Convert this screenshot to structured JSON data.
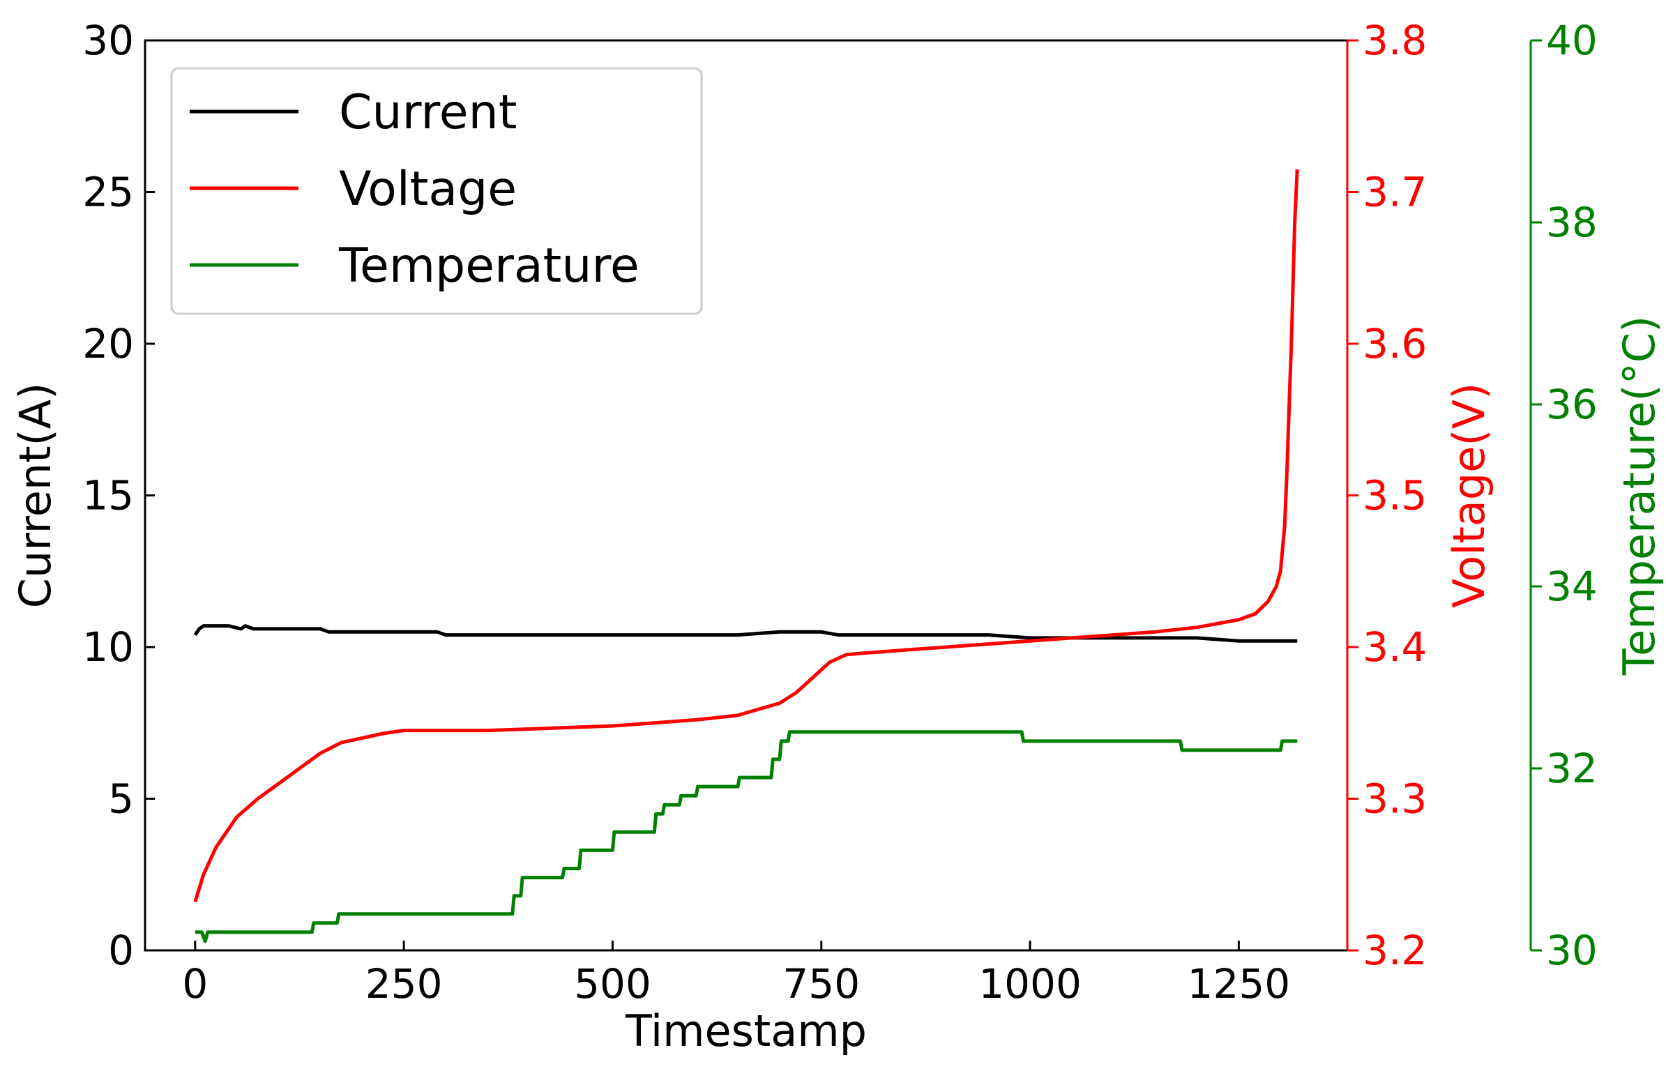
{
  "chart_data": {
    "type": "line",
    "xlabel": "Timestamp",
    "xlim": [
      -60,
      1380
    ],
    "xticks": [
      0,
      250,
      500,
      750,
      1000,
      1250
    ],
    "legend_position": "top-left",
    "grid": false,
    "axes": {
      "current": {
        "label": "Current(A)",
        "side": "left",
        "ylim": [
          0,
          30
        ],
        "ticks": [
          "0",
          "5",
          "10",
          "15",
          "20",
          "25",
          "30"
        ],
        "color": "#000000"
      },
      "voltage": {
        "label": "Voltage(V)",
        "side": "right",
        "ylim": [
          3.2,
          3.8
        ],
        "ticks": [
          "3.2",
          "3.3",
          "3.4",
          "3.5",
          "3.6",
          "3.7",
          "3.8"
        ],
        "color": "#ff0000"
      },
      "temperature": {
        "label": "Temperature(°C)",
        "side": "right-outer",
        "ylim": [
          30,
          40
        ],
        "ticks": [
          "30",
          "32",
          "34",
          "36",
          "38",
          "40"
        ],
        "color": "#008000"
      }
    },
    "series": [
      {
        "name": "Current",
        "axis": "current",
        "color": "#000000",
        "x": [
          0,
          5,
          10,
          40,
          55,
          60,
          70,
          100,
          150,
          160,
          200,
          250,
          290,
          300,
          350,
          400,
          450,
          500,
          550,
          600,
          650,
          700,
          750,
          770,
          800,
          850,
          900,
          950,
          1000,
          1050,
          1100,
          1150,
          1180,
          1200,
          1250,
          1300,
          1320
        ],
        "y": [
          10.4,
          10.6,
          10.7,
          10.7,
          10.6,
          10.7,
          10.6,
          10.6,
          10.6,
          10.5,
          10.5,
          10.5,
          10.5,
          10.4,
          10.4,
          10.4,
          10.4,
          10.4,
          10.4,
          10.4,
          10.4,
          10.5,
          10.5,
          10.4,
          10.4,
          10.4,
          10.4,
          10.4,
          10.3,
          10.3,
          10.3,
          10.3,
          10.3,
          10.3,
          10.2,
          10.2,
          10.2
        ]
      },
      {
        "name": "Voltage",
        "axis": "voltage",
        "color": "#ff0000",
        "x": [
          0,
          10,
          25,
          50,
          75,
          100,
          125,
          150,
          175,
          200,
          225,
          250,
          300,
          350,
          400,
          450,
          500,
          550,
          600,
          650,
          700,
          720,
          740,
          760,
          780,
          800,
          850,
          900,
          950,
          1000,
          1050,
          1100,
          1150,
          1200,
          1250,
          1270,
          1285,
          1295,
          1300,
          1305,
          1308,
          1311,
          1313,
          1315,
          1317,
          1320
        ],
        "y": [
          3.232,
          3.25,
          3.268,
          3.288,
          3.3,
          3.31,
          3.32,
          3.33,
          3.337,
          3.34,
          3.343,
          3.345,
          3.345,
          3.345,
          3.346,
          3.347,
          3.348,
          3.35,
          3.352,
          3.355,
          3.363,
          3.37,
          3.38,
          3.39,
          3.395,
          3.396,
          3.398,
          3.4,
          3.402,
          3.404,
          3.406,
          3.408,
          3.41,
          3.413,
          3.418,
          3.422,
          3.43,
          3.44,
          3.45,
          3.48,
          3.52,
          3.57,
          3.6,
          3.64,
          3.68,
          3.715
        ]
      },
      {
        "name": "Temperature",
        "axis": "temperature",
        "color": "#008000",
        "x": [
          0,
          8,
          12,
          15,
          20,
          140,
          142,
          170,
          172,
          380,
          382,
          390,
          392,
          400,
          402,
          440,
          442,
          460,
          462,
          500,
          502,
          550,
          552,
          560,
          562,
          580,
          582,
          600,
          602,
          620,
          622,
          650,
          652,
          690,
          692,
          700,
          702,
          710,
          712,
          740,
          742,
          990,
          992,
          1000,
          1002,
          1180,
          1182,
          1300,
          1302,
          1320
        ],
        "y": [
          30.2,
          30.2,
          30.1,
          30.2,
          30.2,
          30.2,
          30.3,
          30.3,
          30.4,
          30.4,
          30.6,
          30.6,
          30.8,
          30.8,
          30.8,
          30.8,
          30.9,
          30.9,
          31.1,
          31.1,
          31.3,
          31.3,
          31.5,
          31.5,
          31.6,
          31.6,
          31.7,
          31.7,
          31.8,
          31.8,
          31.8,
          31.8,
          31.9,
          31.9,
          32.1,
          32.1,
          32.3,
          32.3,
          32.4,
          32.4,
          32.4,
          32.4,
          32.3,
          32.3,
          32.3,
          32.3,
          32.2,
          32.2,
          32.3,
          32.3
        ]
      }
    ]
  }
}
